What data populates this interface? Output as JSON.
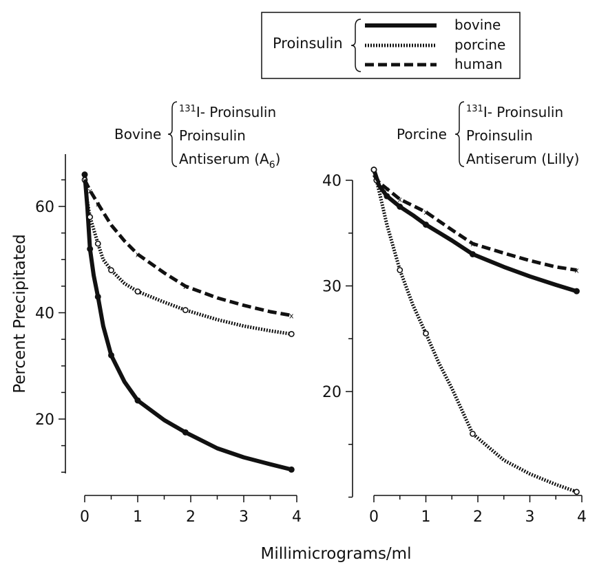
{
  "legend": {
    "group_label": "Proinsulin",
    "entries": [
      "bovine",
      "porcine",
      "human"
    ]
  },
  "shared_xlabel": "Millimicrograms/ml",
  "shared_ylabel": "Percent Precipitated",
  "chart_data": [
    {
      "type": "line",
      "panel": "left",
      "system_label": "Bovine",
      "system_lines": [
        "131",
        "I- Proinsulin",
        "Proinsulin",
        "Antiserum (A",
        "6",
        ")"
      ],
      "xlim": [
        0,
        4
      ],
      "ylim": [
        10,
        70
      ],
      "x_ticks": [
        0,
        1,
        2,
        3,
        4
      ],
      "y_ticks": [
        20,
        40,
        60
      ],
      "series": [
        {
          "name": "bovine",
          "style": "solid",
          "points": [
            [
              0,
              66
            ],
            [
              0.1,
              52
            ],
            [
              0.25,
              43
            ],
            [
              0.5,
              32
            ],
            [
              1,
              23.5
            ],
            [
              1.9,
              17.5
            ],
            [
              3.9,
              10.5
            ]
          ],
          "curve": [
            [
              0,
              66
            ],
            [
              0.05,
              60
            ],
            [
              0.1,
              52
            ],
            [
              0.17,
              47
            ],
            [
              0.25,
              43
            ],
            [
              0.35,
              37.5
            ],
            [
              0.5,
              32
            ],
            [
              0.75,
              27
            ],
            [
              1,
              23.5
            ],
            [
              1.5,
              19.8
            ],
            [
              1.9,
              17.5
            ],
            [
              2.5,
              14.5
            ],
            [
              3,
              12.8
            ],
            [
              3.5,
              11.5
            ],
            [
              3.9,
              10.5
            ]
          ]
        },
        {
          "name": "porcine",
          "style": "dotted",
          "points": [
            [
              0,
              65
            ],
            [
              0.1,
              58
            ],
            [
              0.25,
              53
            ],
            [
              0.5,
              48
            ],
            [
              1,
              44
            ],
            [
              1.9,
              40.5
            ],
            [
              3.9,
              36
            ]
          ],
          "curve": [
            [
              0,
              65
            ],
            [
              0.05,
              61
            ],
            [
              0.1,
              58
            ],
            [
              0.25,
              53
            ],
            [
              0.35,
              50
            ],
            [
              0.5,
              48
            ],
            [
              0.75,
              45.5
            ],
            [
              1,
              44
            ],
            [
              1.5,
              42
            ],
            [
              1.9,
              40.5
            ],
            [
              2.5,
              38.7
            ],
            [
              3,
              37.5
            ],
            [
              3.5,
              36.6
            ],
            [
              3.9,
              36
            ]
          ]
        },
        {
          "name": "human",
          "style": "dashed",
          "points": [
            [
              0,
              65
            ],
            [
              0.1,
              63
            ],
            [
              0.25,
              60.5
            ],
            [
              1,
              51
            ],
            [
              1.9,
              45
            ],
            [
              3.9,
              39.5
            ]
          ],
          "curve": [
            [
              0,
              65
            ],
            [
              0.1,
              63
            ],
            [
              0.25,
              60.5
            ],
            [
              0.5,
              56.5
            ],
            [
              0.75,
              53.5
            ],
            [
              1,
              51
            ],
            [
              1.5,
              47.5
            ],
            [
              1.9,
              45
            ],
            [
              2.5,
              42.8
            ],
            [
              3,
              41.4
            ],
            [
              3.5,
              40.2
            ],
            [
              3.9,
              39.5
            ]
          ]
        }
      ]
    },
    {
      "type": "line",
      "panel": "right",
      "system_label": "Porcine",
      "system_lines": [
        "131",
        "I- Proinsulin",
        "Proinsulin",
        "Antiserum (Lilly)"
      ],
      "xlim": [
        0,
        4
      ],
      "ylim": [
        10,
        42
      ],
      "x_ticks": [
        0,
        1,
        2,
        3,
        4
      ],
      "y_ticks": [
        20,
        30,
        40
      ],
      "series": [
        {
          "name": "bovine",
          "style": "solid",
          "points": [
            [
              0,
              41
            ],
            [
              0.25,
              38.5
            ],
            [
              0.5,
              37.5
            ],
            [
              1,
              35.8
            ],
            [
              1.9,
              33
            ],
            [
              3.9,
              29.5
            ]
          ],
          "curve": [
            [
              0,
              41
            ],
            [
              0.1,
              39.5
            ],
            [
              0.25,
              38.5
            ],
            [
              0.5,
              37.5
            ],
            [
              0.75,
              36.7
            ],
            [
              1,
              35.8
            ],
            [
              1.5,
              34.3
            ],
            [
              1.9,
              33
            ],
            [
              2.5,
              31.8
            ],
            [
              3,
              30.9
            ],
            [
              3.5,
              30.1
            ],
            [
              3.9,
              29.5
            ]
          ]
        },
        {
          "name": "porcine",
          "style": "dotted",
          "points": [
            [
              0,
              41
            ],
            [
              0.05,
              40
            ],
            [
              0.5,
              31.5
            ],
            [
              1,
              25.5
            ],
            [
              1.9,
              16
            ],
            [
              3.9,
              10.5
            ]
          ],
          "curve": [
            [
              0,
              41
            ],
            [
              0.05,
              40
            ],
            [
              0.1,
              39
            ],
            [
              0.25,
              35.8
            ],
            [
              0.5,
              31.5
            ],
            [
              0.75,
              28.2
            ],
            [
              1,
              25.5
            ],
            [
              1.25,
              22.7
            ],
            [
              1.5,
              20.3
            ],
            [
              1.9,
              16
            ],
            [
              2.5,
              13.5
            ],
            [
              3,
              12.2
            ],
            [
              3.5,
              11.2
            ],
            [
              3.9,
              10.5
            ]
          ]
        },
        {
          "name": "human",
          "style": "dashed",
          "points": [
            [
              0.1,
              39.8
            ],
            [
              0.25,
              39.2
            ],
            [
              0.5,
              38.2
            ],
            [
              1,
              37
            ],
            [
              1.9,
              34
            ],
            [
              3.9,
              31.5
            ]
          ],
          "curve": [
            [
              0,
              40.5
            ],
            [
              0.1,
              39.8
            ],
            [
              0.25,
              39.2
            ],
            [
              0.5,
              38.2
            ],
            [
              0.75,
              37.6
            ],
            [
              1,
              37
            ],
            [
              1.5,
              35.3
            ],
            [
              1.9,
              34
            ],
            [
              2.5,
              33.1
            ],
            [
              3,
              32.4
            ],
            [
              3.5,
              31.8
            ],
            [
              3.9,
              31.5
            ]
          ]
        }
      ]
    }
  ]
}
